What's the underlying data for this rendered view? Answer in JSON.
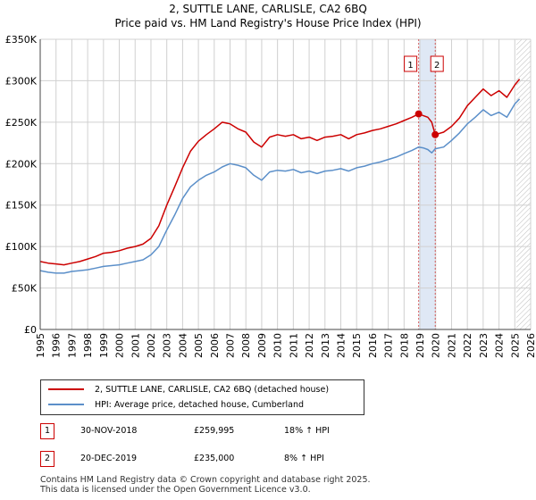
{
  "title_line1": "2, SUTTLE LANE, CARLISLE, CA2 6BQ",
  "title_line2": "Price paid vs. HM Land Registry's House Price Index (HPI)",
  "colors": {
    "price": "#cc0000",
    "hpi": "#5b8fc9",
    "band": "#dfe8f5",
    "grid": "#d0d0d0"
  },
  "chart_data": {
    "type": "line",
    "x_ticks": [
      "1995",
      "1996",
      "1997",
      "1998",
      "1999",
      "2000",
      "2001",
      "2002",
      "2003",
      "2004",
      "2005",
      "2006",
      "2007",
      "2008",
      "2009",
      "2010",
      "2011",
      "2012",
      "2013",
      "2014",
      "2015",
      "2016",
      "2017",
      "2018",
      "2019",
      "2020",
      "2021",
      "2022",
      "2023",
      "2024",
      "2025",
      "2026"
    ],
    "y_ticks": [
      "£0",
      "£50K",
      "£100K",
      "£150K",
      "£200K",
      "£250K",
      "£300K",
      "£350K"
    ],
    "xlim": [
      1995,
      2026
    ],
    "ylim": [
      0,
      350000
    ],
    "series": [
      {
        "name": "2, SUTTLE LANE, CARLISLE, CA2 6BQ (detached house)",
        "color": "#cc0000",
        "x": [
          1995,
          1995.5,
          1996,
          1996.5,
          1997,
          1997.5,
          1998,
          1998.5,
          1999,
          1999.5,
          2000,
          2000.5,
          2001,
          2001.5,
          2002,
          2002.5,
          2003,
          2003.5,
          2004,
          2004.5,
          2005,
          2005.5,
          2006,
          2006.5,
          2007,
          2007.5,
          2008,
          2008.5,
          2009,
          2009.5,
          2010,
          2010.5,
          2011,
          2011.5,
          2012,
          2012.5,
          2013,
          2013.5,
          2014,
          2014.5,
          2015,
          2015.5,
          2016,
          2016.5,
          2017,
          2017.5,
          2018,
          2018.5,
          2018.92,
          2019.2,
          2019.5,
          2019.75,
          2019.97,
          2020.5,
          2021,
          2021.5,
          2022,
          2022.5,
          2023,
          2023.5,
          2024,
          2024.5,
          2025,
          2025.3
        ],
        "values": [
          82000,
          80000,
          79000,
          78000,
          80000,
          82000,
          85000,
          88000,
          92000,
          93000,
          95000,
          98000,
          100000,
          103000,
          110000,
          125000,
          150000,
          172000,
          195000,
          215000,
          227000,
          235000,
          242000,
          250000,
          248000,
          242000,
          238000,
          226000,
          220000,
          232000,
          235000,
          233000,
          235000,
          230000,
          232000,
          228000,
          232000,
          233000,
          235000,
          230000,
          235000,
          237000,
          240000,
          242000,
          245000,
          248000,
          252000,
          256000,
          259995,
          258000,
          256000,
          250000,
          235000,
          238000,
          245000,
          255000,
          270000,
          280000,
          290000,
          282000,
          288000,
          280000,
          295000,
          302000
        ]
      },
      {
        "name": "HPI: Average price, detached house, Cumberland",
        "color": "#5b8fc9",
        "x": [
          1995,
          1995.5,
          1996,
          1996.5,
          1997,
          1997.5,
          1998,
          1998.5,
          1999,
          1999.5,
          2000,
          2000.5,
          2001,
          2001.5,
          2002,
          2002.5,
          2003,
          2003.5,
          2004,
          2004.5,
          2005,
          2005.5,
          2006,
          2006.5,
          2007,
          2007.5,
          2008,
          2008.5,
          2009,
          2009.5,
          2010,
          2010.5,
          2011,
          2011.5,
          2012,
          2012.5,
          2013,
          2013.5,
          2014,
          2014.5,
          2015,
          2015.5,
          2016,
          2016.5,
          2017,
          2017.5,
          2018,
          2018.5,
          2018.92,
          2019.2,
          2019.5,
          2019.75,
          2019.97,
          2020.5,
          2021,
          2021.5,
          2022,
          2022.5,
          2023,
          2023.5,
          2024,
          2024.5,
          2025,
          2025.3
        ],
        "values": [
          71000,
          69000,
          68000,
          68000,
          70000,
          71000,
          72000,
          74000,
          76000,
          77000,
          78000,
          80000,
          82000,
          84000,
          90000,
          100000,
          120000,
          138000,
          158000,
          172000,
          180000,
          186000,
          190000,
          196000,
          200000,
          198000,
          195000,
          186000,
          180000,
          190000,
          192000,
          191000,
          193000,
          189000,
          191000,
          188000,
          191000,
          192000,
          194000,
          191000,
          195000,
          197000,
          200000,
          202000,
          205000,
          208000,
          212000,
          216000,
          220000,
          219000,
          217000,
          213000,
          218000,
          220000,
          228000,
          237000,
          248000,
          256000,
          265000,
          258000,
          262000,
          256000,
          272000,
          278000
        ]
      }
    ],
    "annotations": [
      {
        "label": "1",
        "x": 2018.92,
        "value": 259995
      },
      {
        "label": "2",
        "x": 2019.97,
        "value": 235000
      }
    ]
  },
  "legend": {
    "item1": "2, SUTTLE LANE, CARLISLE, CA2 6BQ (detached house)",
    "item2": "HPI: Average price, detached house, Cumberland"
  },
  "transactions": [
    {
      "num": "1",
      "date": "30-NOV-2018",
      "price": "£259,995",
      "hpi": "18% ↑ HPI"
    },
    {
      "num": "2",
      "date": "20-DEC-2019",
      "price": "£235,000",
      "hpi": "8% ↑ HPI"
    }
  ],
  "footer": {
    "line1": "Contains HM Land Registry data © Crown copyright and database right 2025.",
    "line2": "This data is licensed under the Open Government Licence v3.0."
  }
}
